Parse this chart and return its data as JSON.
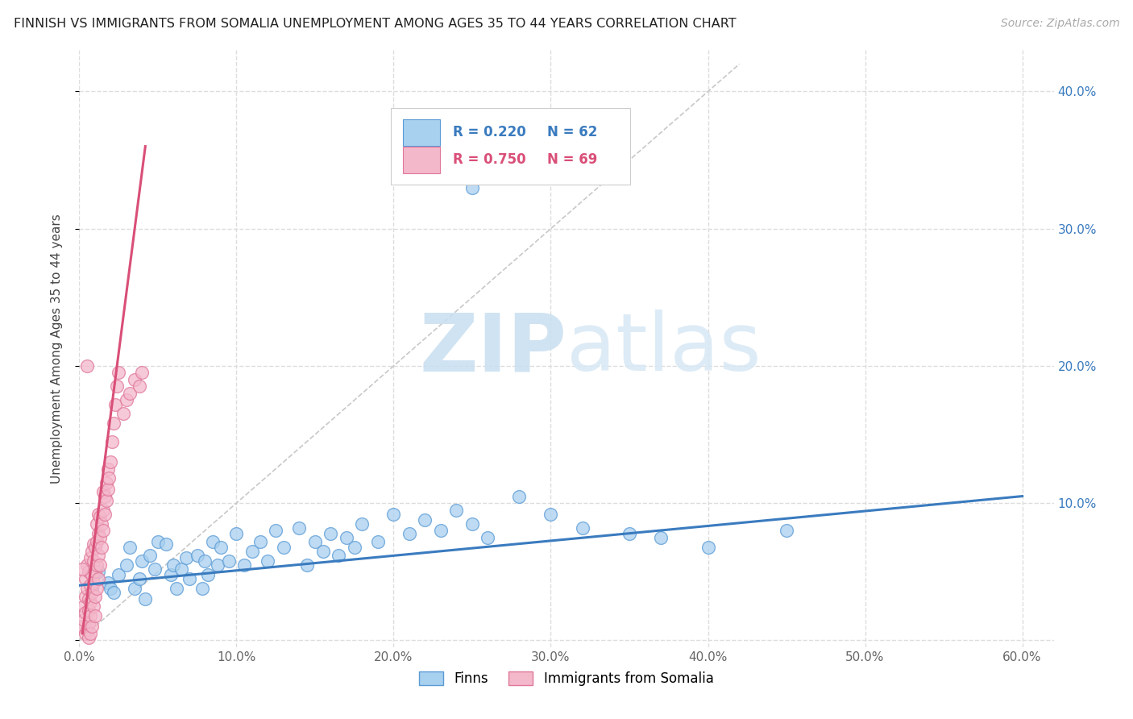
{
  "title": "FINNISH VS IMMIGRANTS FROM SOMALIA UNEMPLOYMENT AMONG AGES 35 TO 44 YEARS CORRELATION CHART",
  "source": "Source: ZipAtlas.com",
  "ylabel": "Unemployment Among Ages 35 to 44 years",
  "xlim": [
    0.0,
    0.62
  ],
  "ylim": [
    -0.005,
    0.43
  ],
  "xticks": [
    0.0,
    0.1,
    0.2,
    0.3,
    0.4,
    0.5,
    0.6
  ],
  "yticks": [
    0.0,
    0.1,
    0.2,
    0.3,
    0.4
  ],
  "xtick_labels": [
    "0.0%",
    "10.0%",
    "20.0%",
    "30.0%",
    "40.0%",
    "50.0%",
    "60.0%"
  ],
  "ytick_labels": [
    "",
    "10.0%",
    "20.0%",
    "30.0%",
    "40.0%"
  ],
  "blue_R": 0.22,
  "blue_N": 62,
  "pink_R": 0.75,
  "pink_N": 69,
  "blue_fill_color": "#a8d0ef",
  "pink_fill_color": "#f4b8cb",
  "blue_edge_color": "#5b9bd5",
  "pink_edge_color": "#e07898",
  "blue_line_color": "#3a7bbf",
  "pink_line_color": "#d94f78",
  "legend_labels": [
    "Finns",
    "Immigrants from Somalia"
  ],
  "watermark_zip": "ZIP",
  "watermark_atlas": "atlas",
  "blue_scatter_x": [
    0.008,
    0.012,
    0.018,
    0.02,
    0.022,
    0.025,
    0.03,
    0.032,
    0.035,
    0.038,
    0.04,
    0.042,
    0.045,
    0.048,
    0.05,
    0.055,
    0.058,
    0.06,
    0.062,
    0.065,
    0.068,
    0.07,
    0.075,
    0.078,
    0.08,
    0.082,
    0.085,
    0.088,
    0.09,
    0.095,
    0.1,
    0.105,
    0.11,
    0.115,
    0.12,
    0.125,
    0.13,
    0.14,
    0.145,
    0.15,
    0.155,
    0.16,
    0.165,
    0.17,
    0.175,
    0.18,
    0.19,
    0.2,
    0.21,
    0.22,
    0.23,
    0.24,
    0.25,
    0.26,
    0.28,
    0.3,
    0.32,
    0.35,
    0.37,
    0.4,
    0.45,
    0.25
  ],
  "blue_scatter_y": [
    0.038,
    0.05,
    0.042,
    0.038,
    0.035,
    0.048,
    0.055,
    0.068,
    0.038,
    0.045,
    0.058,
    0.03,
    0.062,
    0.052,
    0.072,
    0.07,
    0.048,
    0.055,
    0.038,
    0.052,
    0.06,
    0.045,
    0.062,
    0.038,
    0.058,
    0.048,
    0.072,
    0.055,
    0.068,
    0.058,
    0.078,
    0.055,
    0.065,
    0.072,
    0.058,
    0.08,
    0.068,
    0.082,
    0.055,
    0.072,
    0.065,
    0.078,
    0.062,
    0.075,
    0.068,
    0.085,
    0.072,
    0.092,
    0.078,
    0.088,
    0.08,
    0.095,
    0.085,
    0.075,
    0.105,
    0.092,
    0.082,
    0.078,
    0.075,
    0.068,
    0.08,
    0.33
  ],
  "pink_scatter_x": [
    0.002,
    0.003,
    0.003,
    0.004,
    0.004,
    0.004,
    0.004,
    0.005,
    0.005,
    0.005,
    0.006,
    0.006,
    0.006,
    0.006,
    0.006,
    0.007,
    0.007,
    0.007,
    0.007,
    0.007,
    0.008,
    0.008,
    0.008,
    0.008,
    0.009,
    0.009,
    0.009,
    0.009,
    0.01,
    0.01,
    0.01,
    0.01,
    0.011,
    0.011,
    0.011,
    0.011,
    0.012,
    0.012,
    0.012,
    0.012,
    0.013,
    0.013,
    0.013,
    0.014,
    0.014,
    0.015,
    0.015,
    0.015,
    0.016,
    0.016,
    0.017,
    0.017,
    0.018,
    0.018,
    0.019,
    0.02,
    0.021,
    0.022,
    0.023,
    0.024,
    0.025,
    0.028,
    0.03,
    0.032,
    0.035,
    0.038,
    0.04,
    0.002,
    0.005
  ],
  "pink_scatter_y": [
    0.01,
    0.015,
    0.025,
    0.02,
    0.032,
    0.045,
    0.005,
    0.038,
    0.055,
    0.008,
    0.012,
    0.022,
    0.03,
    0.05,
    0.002,
    0.018,
    0.028,
    0.04,
    0.06,
    0.005,
    0.035,
    0.048,
    0.065,
    0.01,
    0.025,
    0.042,
    0.058,
    0.07,
    0.018,
    0.032,
    0.05,
    0.068,
    0.038,
    0.055,
    0.072,
    0.085,
    0.045,
    0.062,
    0.078,
    0.092,
    0.055,
    0.075,
    0.09,
    0.068,
    0.085,
    0.08,
    0.095,
    0.108,
    0.092,
    0.105,
    0.102,
    0.115,
    0.11,
    0.125,
    0.118,
    0.13,
    0.145,
    0.158,
    0.172,
    0.185,
    0.195,
    0.165,
    0.175,
    0.18,
    0.19,
    0.185,
    0.195,
    0.052,
    0.2
  ],
  "blue_line_x": [
    0.0,
    0.6
  ],
  "blue_line_y": [
    0.04,
    0.105
  ],
  "pink_line_x": [
    0.002,
    0.042
  ],
  "pink_line_y": [
    0.005,
    0.36
  ],
  "ref_line_x": [
    0.0,
    0.42
  ],
  "ref_line_y": [
    0.0,
    0.42
  ]
}
